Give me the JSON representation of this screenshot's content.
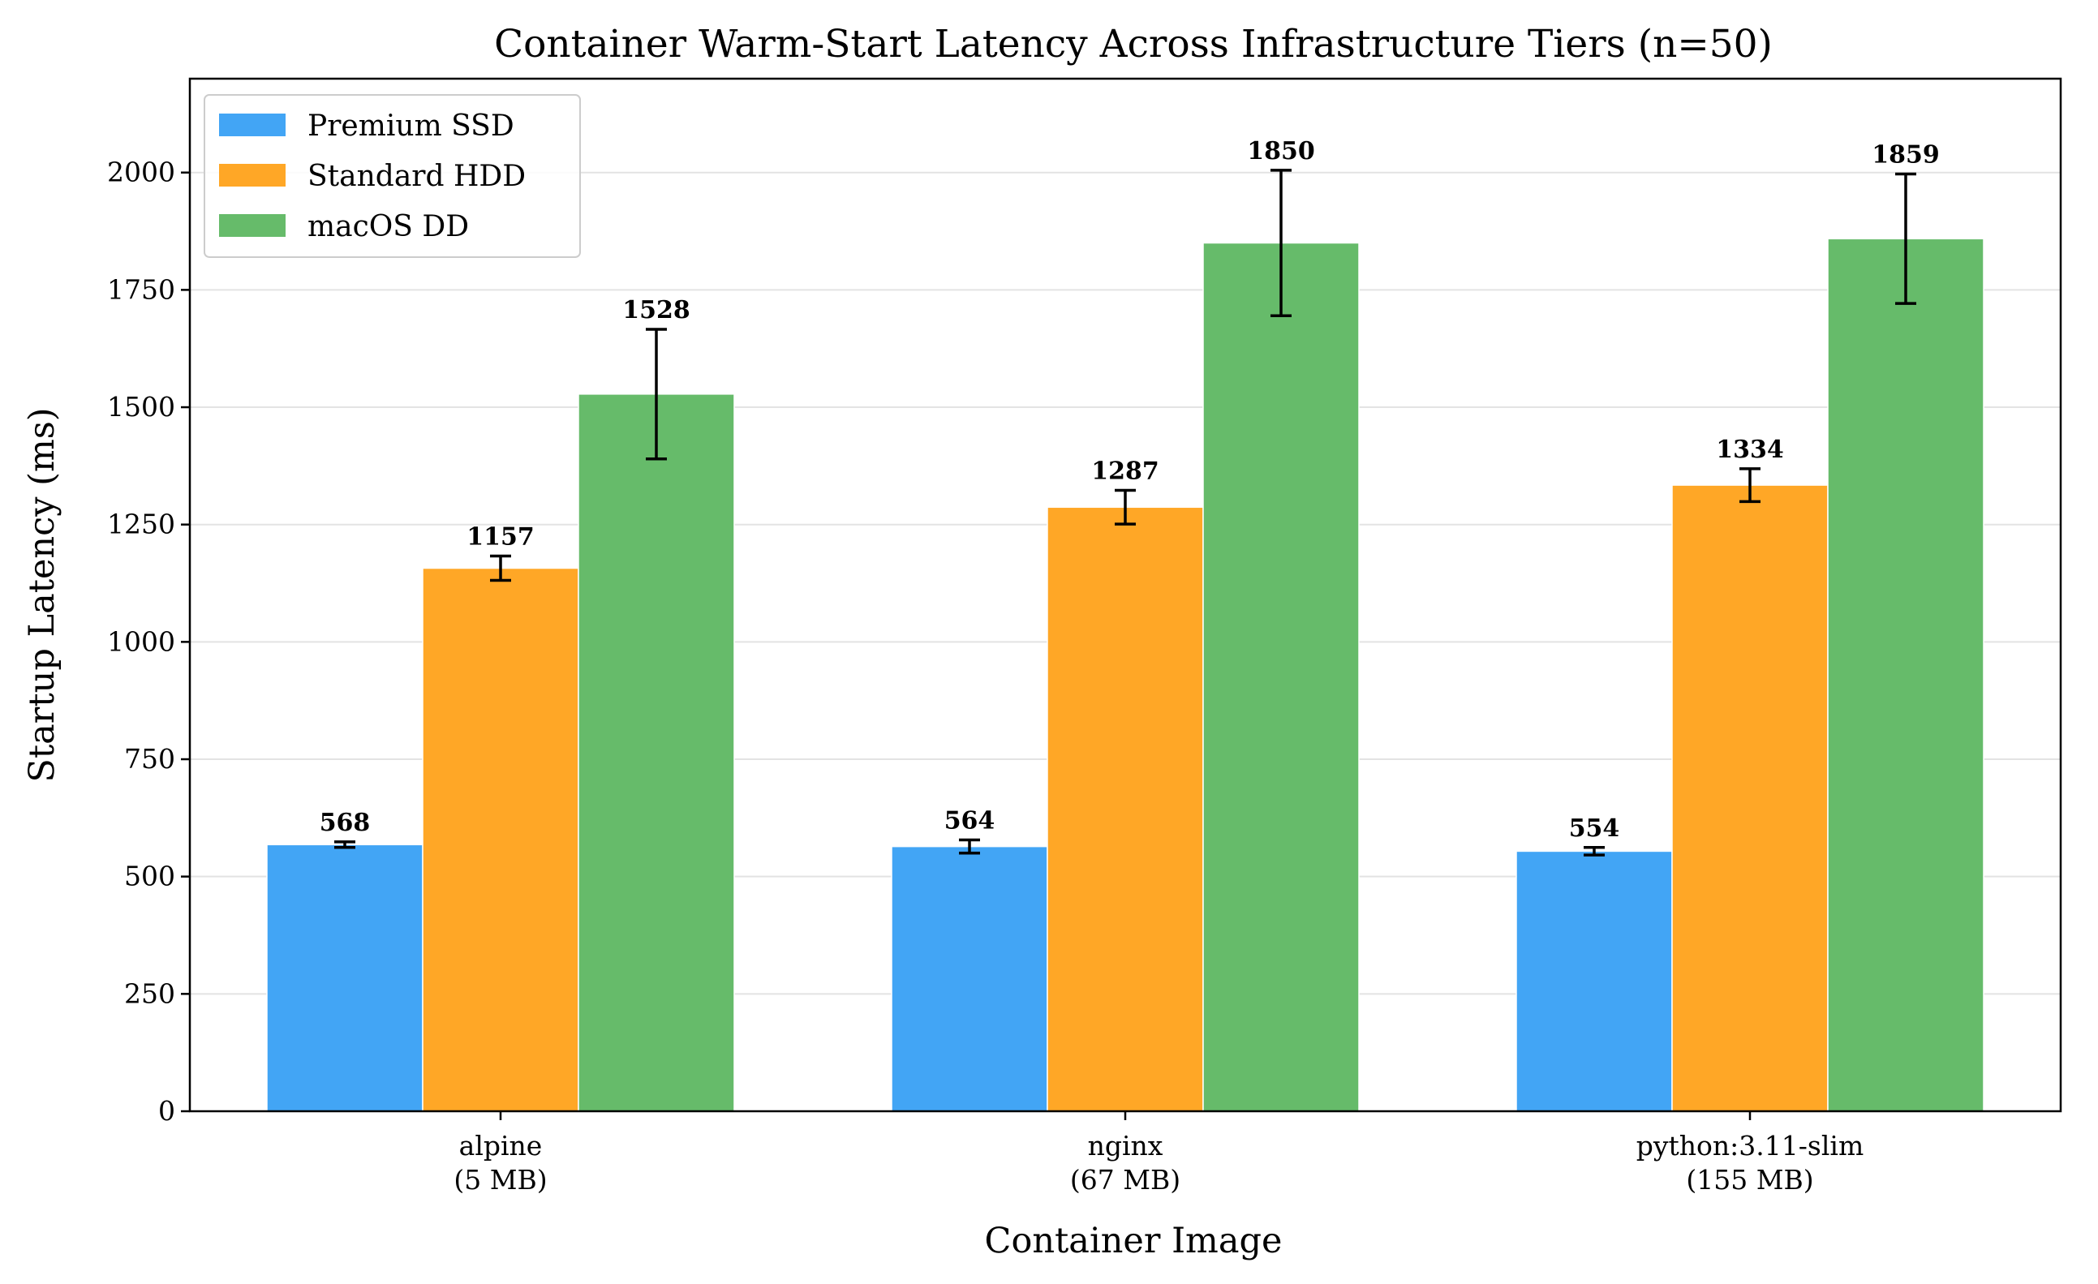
{
  "chart_data": {
    "type": "bar",
    "title": "Container Warm-Start Latency Across Infrastructure Tiers (n=50)",
    "xlabel": "Container Image",
    "ylabel": "Startup Latency (ms)",
    "categories": [
      {
        "name": "alpine",
        "size": "(5 MB)"
      },
      {
        "name": "nginx",
        "size": "(67 MB)"
      },
      {
        "name": "python:3.11-slim",
        "size": "(155 MB)"
      }
    ],
    "series": [
      {
        "name": "Premium SSD",
        "color": "#42A5F5",
        "values": [
          568,
          564,
          554
        ],
        "errors": [
          6,
          14,
          8
        ]
      },
      {
        "name": "Standard HDD",
        "color": "#FFA726",
        "values": [
          1157,
          1287,
          1334
        ],
        "errors": [
          26,
          36,
          35
        ]
      },
      {
        "name": "macOS DD",
        "color": "#66BB6A",
        "values": [
          1528,
          1850,
          1859
        ],
        "errors": [
          138,
          155,
          138
        ]
      }
    ],
    "ylim": [
      0,
      2200
    ],
    "yticks": [
      0,
      250,
      500,
      750,
      1000,
      1250,
      1500,
      1750,
      2000
    ],
    "grid": "horizontal",
    "legend_position": "top-left"
  }
}
